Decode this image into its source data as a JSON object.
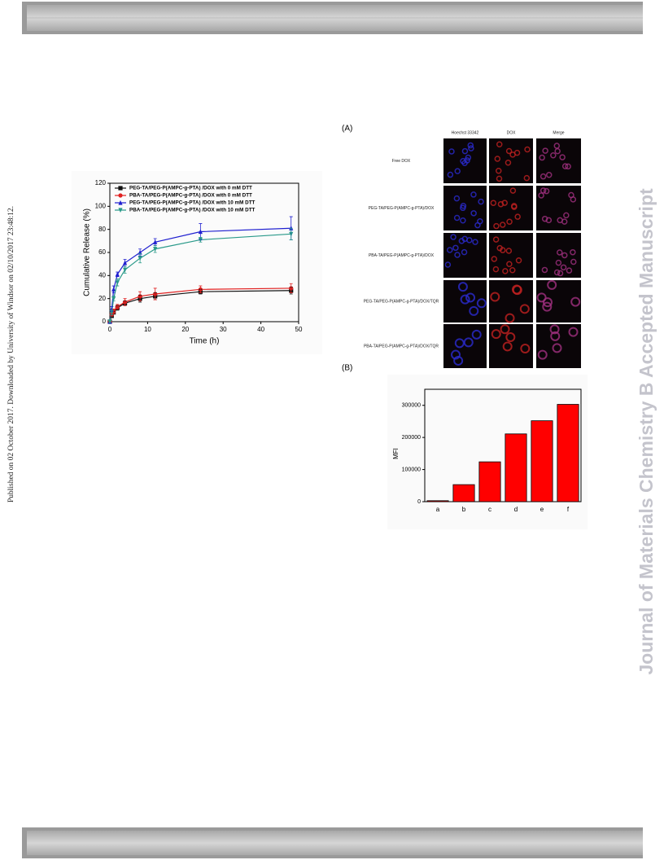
{
  "side_note": "Published on 02 October 2017. Downloaded by University of Windsor on 02/10/2017 23:48:12.",
  "watermark": "Journal of Materials Chemistry B Accepted Manuscript",
  "panel_a": {
    "label": "(A)",
    "columns": [
      "Hoechst 33342",
      "DOX",
      "Merge"
    ],
    "rows": [
      "Free DOX",
      "PEG-TA/PEG-P(AMPC-g-PTA)/DOX",
      "PBA-TA/PEG-P(AMPC-g-PTA)/DOX",
      "PEG-TA/PEG-P(AMPC-g-PTA)/DOX/TQR",
      "PBA-TA/PEG-P(AMPC-g-PTA)/DOX/TQR"
    ]
  },
  "panel_b": {
    "label": "(B)"
  },
  "chart_data": [
    {
      "type": "line",
      "xlabel": "Time (h)",
      "ylabel": "Cumulative Release (%)",
      "x": [
        0,
        0.5,
        1,
        2,
        4,
        8,
        12,
        24,
        48
      ],
      "series": [
        {
          "name": "PEG-TA/PEG-P(AMPC-g-PTA) /DOX with 0 mM DTT",
          "color": "#111111",
          "marker": "square",
          "values": [
            0,
            5,
            8,
            12,
            16,
            20,
            22,
            26,
            27
          ],
          "errors": [
            0,
            1,
            1,
            2,
            2,
            3,
            3,
            2,
            3
          ]
        },
        {
          "name": "PBA-TA/PEG-P(AMPC-g-PTA) /DOX with 0 mM DTT",
          "color": "#e02020",
          "marker": "circle",
          "values": [
            0,
            6,
            9,
            13,
            17,
            22,
            24,
            28,
            29
          ],
          "errors": [
            0,
            1,
            2,
            2,
            3,
            4,
            5,
            3,
            4
          ]
        },
        {
          "name": "PEG-TA/PEG-P(AMPC-g-PTA) /DOX with 10 mM DTT",
          "color": "#2020d0",
          "marker": "triangle-up",
          "values": [
            0,
            11,
            28,
            41,
            51,
            60,
            69,
            78,
            81
          ],
          "errors": [
            0,
            2,
            3,
            2,
            3,
            3,
            3,
            7,
            10
          ]
        },
        {
          "name": "PBA-TA/PEG-P(AMPC-g-PTA) /DOX with 10 mM DTT",
          "color": "#2a9a8a",
          "marker": "triangle-down",
          "values": [
            0,
            8,
            20,
            34,
            45,
            55,
            63,
            71,
            76
          ],
          "errors": [
            0,
            2,
            2,
            3,
            3,
            4,
            3,
            2,
            5
          ]
        }
      ],
      "xlim": [
        0,
        50
      ],
      "xticks": [
        0,
        10,
        20,
        30,
        40,
        50
      ],
      "ylim": [
        0,
        120
      ],
      "yticks": [
        0,
        20,
        40,
        60,
        80,
        100,
        120
      ],
      "legend": "upper left"
    },
    {
      "type": "bar",
      "ylabel": "MFI",
      "categories": [
        "a",
        "b",
        "c",
        "d",
        "e",
        "f"
      ],
      "values": [
        3000,
        53000,
        124000,
        211000,
        252000,
        303000
      ],
      "color": "#ff0000",
      "ylim": [
        0,
        350000
      ],
      "yticks": [
        0,
        100000,
        200000,
        300000
      ]
    }
  ]
}
